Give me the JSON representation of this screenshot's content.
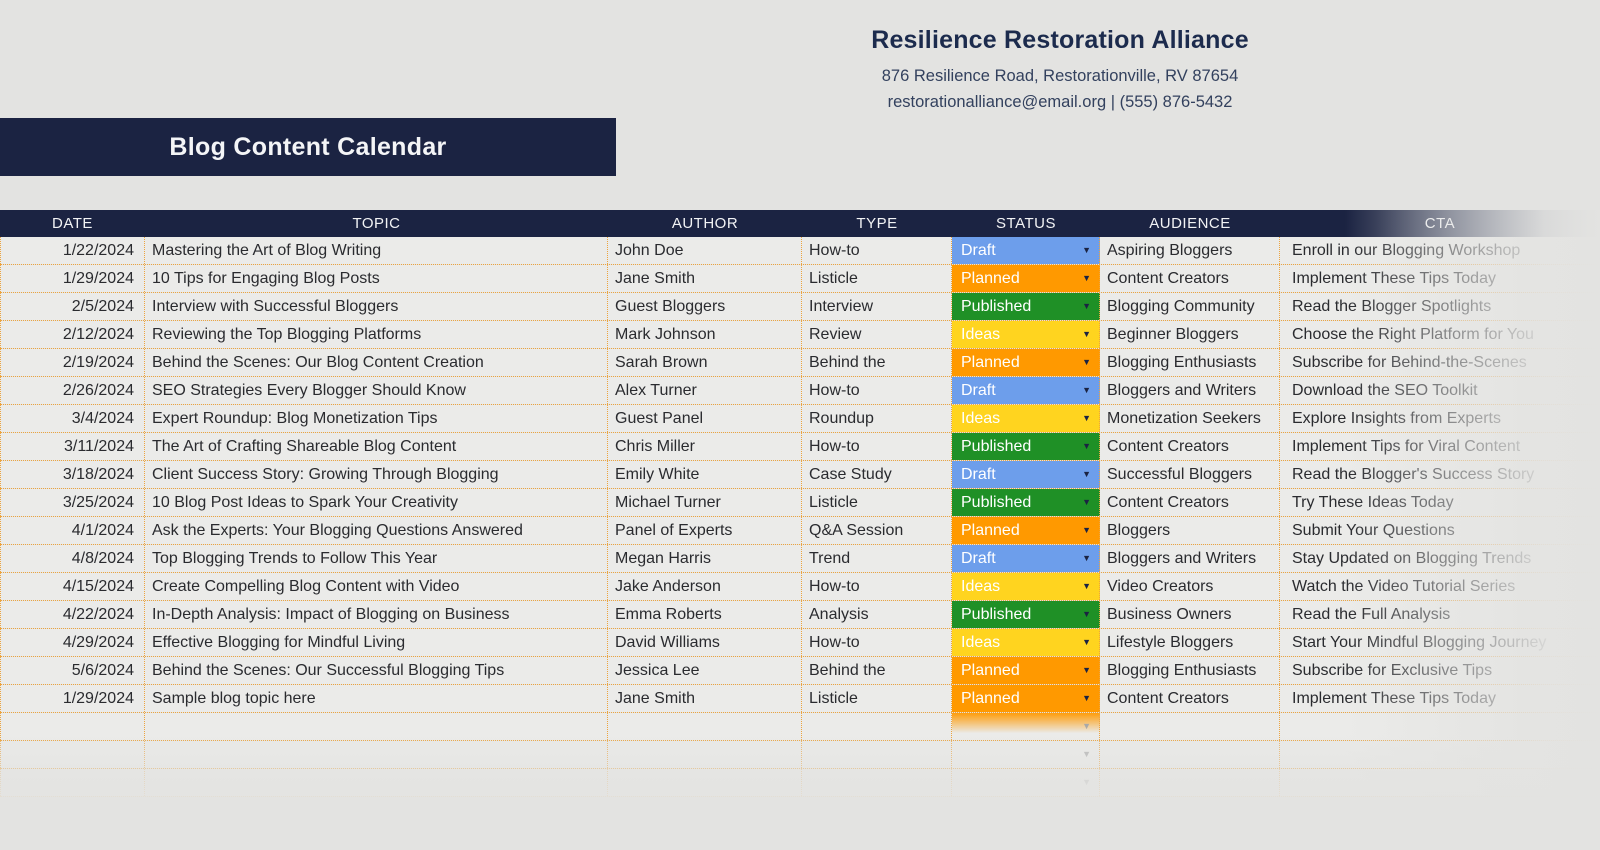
{
  "company": {
    "name": "Resilience Restoration Alliance",
    "address": "876 Resilience Road, Restorationville, RV 87654",
    "contact": "restorationalliance@email.org | (555) 876-5432"
  },
  "banner": {
    "title": "Blog Content Calendar"
  },
  "table": {
    "columns": [
      "DATE",
      "TOPIC",
      "AUTHOR",
      "TYPE",
      "STATUS",
      "AUDIENCE",
      "CTA"
    ],
    "status_colors": {
      "Draft": "#6d9eeb",
      "Planned": "#ff9900",
      "Published": "#1f9026",
      "Ideas": "#ffd41f"
    },
    "dropdown_arrow_color": "#1b2342",
    "rows": [
      {
        "date": "1/22/2024",
        "topic": "Mastering the Art of Blog Writing",
        "author": "John Doe",
        "type": "How-to",
        "status": "Draft",
        "audience": "Aspiring Bloggers",
        "cta": "Enroll in our Blogging Workshop"
      },
      {
        "date": "1/29/2024",
        "topic": "10 Tips for Engaging Blog Posts",
        "author": "Jane Smith",
        "type": "Listicle",
        "status": "Planned",
        "audience": "Content Creators",
        "cta": "Implement These Tips Today"
      },
      {
        "date": "2/5/2024",
        "topic": "Interview with Successful Bloggers",
        "author": "Guest Bloggers",
        "type": "Interview",
        "status": "Published",
        "audience": "Blogging Community",
        "cta": "Read the Blogger Spotlights"
      },
      {
        "date": "2/12/2024",
        "topic": "Reviewing the Top Blogging Platforms",
        "author": "Mark Johnson",
        "type": "Review",
        "status": "Ideas",
        "audience": "Beginner Bloggers",
        "cta": "Choose the Right Platform for You"
      },
      {
        "date": "2/19/2024",
        "topic": "Behind the Scenes: Our Blog Content Creation",
        "author": "Sarah Brown",
        "type": "Behind the",
        "status": "Planned",
        "audience": "Blogging Enthusiasts",
        "cta": "Subscribe for Behind-the-Scenes"
      },
      {
        "date": "2/26/2024",
        "topic": "SEO Strategies Every Blogger Should Know",
        "author": "Alex Turner",
        "type": "How-to",
        "status": "Draft",
        "audience": "Bloggers and Writers",
        "cta": "Download the SEO Toolkit"
      },
      {
        "date": "3/4/2024",
        "topic": "Expert Roundup: Blog Monetization Tips",
        "author": "Guest Panel",
        "type": "Roundup",
        "status": "Ideas",
        "audience": "Monetization Seekers",
        "cta": "Explore Insights from Experts"
      },
      {
        "date": "3/11/2024",
        "topic": "The Art of Crafting Shareable Blog Content",
        "author": "Chris Miller",
        "type": "How-to",
        "status": "Published",
        "audience": "Content Creators",
        "cta": "Implement Tips for Viral Content"
      },
      {
        "date": "3/18/2024",
        "topic": "Client Success Story: Growing Through Blogging",
        "author": "Emily White",
        "type": "Case Study",
        "status": "Draft",
        "audience": "Successful Bloggers",
        "cta": "Read the Blogger's Success Story"
      },
      {
        "date": "3/25/2024",
        "topic": "10 Blog Post Ideas to Spark Your Creativity",
        "author": "Michael Turner",
        "type": "Listicle",
        "status": "Published",
        "audience": "Content Creators",
        "cta": "Try These Ideas Today"
      },
      {
        "date": "4/1/2024",
        "topic": "Ask the Experts: Your Blogging Questions Answered",
        "author": "Panel of Experts",
        "type": "Q&A Session",
        "status": "Planned",
        "audience": "Bloggers",
        "cta": "Submit Your Questions"
      },
      {
        "date": "4/8/2024",
        "topic": "Top Blogging Trends to Follow This Year",
        "author": "Megan Harris",
        "type": "Trend",
        "status": "Draft",
        "audience": "Bloggers and Writers",
        "cta": "Stay Updated on Blogging Trends"
      },
      {
        "date": "4/15/2024",
        "topic": "Create Compelling Blog Content with Video",
        "author": "Jake Anderson",
        "type": "How-to",
        "status": "Ideas",
        "audience": "Video Creators",
        "cta": "Watch the Video Tutorial Series"
      },
      {
        "date": "4/22/2024",
        "topic": "In-Depth Analysis: Impact of Blogging on Business",
        "author": "Emma Roberts",
        "type": "Analysis",
        "status": "Published",
        "audience": "Business Owners",
        "cta": "Read the Full Analysis"
      },
      {
        "date": "4/29/2024",
        "topic": "Effective Blogging for Mindful Living",
        "author": "David Williams",
        "type": "How-to",
        "status": "Ideas",
        "audience": "Lifestyle Bloggers",
        "cta": "Start Your Mindful Blogging Journey"
      },
      {
        "date": "5/6/2024",
        "topic": "Behind the Scenes: Our Successful Blogging Tips",
        "author": "Jessica Lee",
        "type": "Behind the",
        "status": "Planned",
        "audience": "Blogging Enthusiasts",
        "cta": "Subscribe for Exclusive Tips"
      },
      {
        "date": "1/29/2024",
        "topic": "Sample blog topic here",
        "author": "Jane Smith",
        "type": "Listicle",
        "status": "Planned",
        "audience": "Content Creators",
        "cta": "Implement These Tips Today"
      }
    ],
    "empty_row_count": 3
  }
}
